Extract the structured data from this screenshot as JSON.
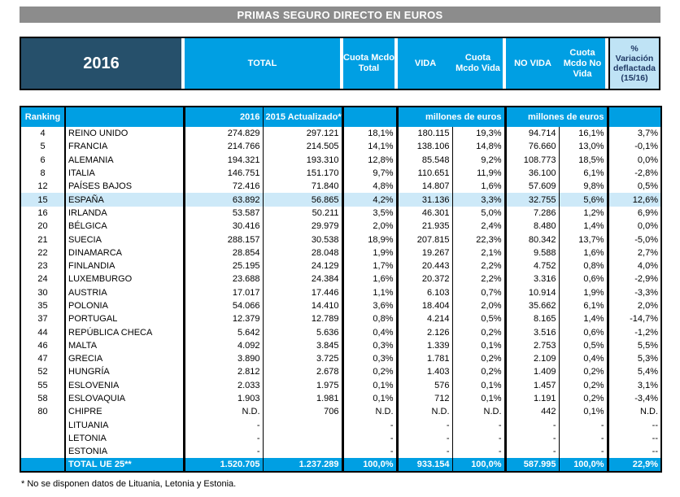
{
  "colors": {
    "gray": "#8c8c8c",
    "blue": "#009fe3",
    "dark": "#26506b",
    "light": "#bfe3f5",
    "navy": "#1f3864",
    "highlight": "#cde9f8"
  },
  "title": "PRIMAS SEGURO DIRECTO EN EUROS",
  "header_band": {
    "year": "2016",
    "total": "TOTAL",
    "cuota_total": "Cuota Mcdo Total",
    "vida": "VIDA",
    "cuota_vida": "Cuota Mcdo Vida",
    "no_vida": "NO VIDA",
    "cuota_no_vida": "Cuota Mcdo No Vida",
    "variacion": "% Variación deflactada (15/16)"
  },
  "subheader": {
    "ranking": "Ranking",
    "country": "",
    "y2016": "2016",
    "y2015": "2015 Actualizado*",
    "cuota_blank": "",
    "millones_vida": "millones de euros",
    "millones_no_vida": "millones de euros",
    "variacion_blank": ""
  },
  "chart_data": {
    "type": "table",
    "title": "PRIMAS SEGURO DIRECTO EN EUROS",
    "columns": [
      "rank",
      "country",
      "total_2016",
      "total_2015_actualizado",
      "cuota_mcdo_total",
      "vida",
      "cuota_mcdo_vida",
      "no_vida",
      "cuota_mcdo_no_vida",
      "variacion_deflactada_15_16"
    ],
    "units": "millones de euros",
    "rows": [
      {
        "cells": [
          "4",
          "REINO UNIDO",
          "274.829",
          "297.121",
          "18,1%",
          "180.115",
          "19,3%",
          "94.714",
          "16,1%",
          "3,7%"
        ],
        "highlight": false
      },
      {
        "cells": [
          "5",
          "FRANCIA",
          "214.766",
          "214.505",
          "14,1%",
          "138.106",
          "14,8%",
          "76.660",
          "13,0%",
          "-0,1%"
        ],
        "highlight": false
      },
      {
        "cells": [
          "6",
          "ALEMANIA",
          "194.321",
          "193.310",
          "12,8%",
          "85.548",
          "9,2%",
          "108.773",
          "18,5%",
          "0,0%"
        ],
        "highlight": false
      },
      {
        "cells": [
          "8",
          "ITALIA",
          "146.751",
          "151.170",
          "9,7%",
          "110.651",
          "11,9%",
          "36.100",
          "6,1%",
          "-2,8%"
        ],
        "highlight": false
      },
      {
        "cells": [
          "12",
          "PAÍSES BAJOS",
          "72.416",
          "71.840",
          "4,8%",
          "14.807",
          "1,6%",
          "57.609",
          "9,8%",
          "0,5%"
        ],
        "highlight": false
      },
      {
        "cells": [
          "15",
          "ESPAÑA",
          "63.892",
          "56.865",
          "4,2%",
          "31.136",
          "3,3%",
          "32.755",
          "5,6%",
          "12,6%"
        ],
        "highlight": true
      },
      {
        "cells": [
          "16",
          "IRLANDA",
          "53.587",
          "50.211",
          "3,5%",
          "46.301",
          "5,0%",
          "7.286",
          "1,2%",
          "6,9%"
        ],
        "highlight": false
      },
      {
        "cells": [
          "20",
          "BÉLGICA",
          "30.416",
          "29.979",
          "2,0%",
          "21.935",
          "2,4%",
          "8.480",
          "1,4%",
          "0,0%"
        ],
        "highlight": false
      },
      {
        "cells": [
          "21",
          "SUECIA",
          "288.157",
          "30.538",
          "18,9%",
          "207.815",
          "22,3%",
          "80.342",
          "13,7%",
          "-5,0%"
        ],
        "highlight": false
      },
      {
        "cells": [
          "22",
          "DINAMARCA",
          "28.854",
          "28.048",
          "1,9%",
          "19.267",
          "2,1%",
          "9.588",
          "1,6%",
          "2,7%"
        ],
        "highlight": false
      },
      {
        "cells": [
          "23",
          "FINLANDIA",
          "25.195",
          "24.129",
          "1,7%",
          "20.443",
          "2,2%",
          "4.752",
          "0,8%",
          "4,0%"
        ],
        "highlight": false
      },
      {
        "cells": [
          "24",
          "LUXEMBURGO",
          "23.688",
          "24.384",
          "1,6%",
          "20.372",
          "2,2%",
          "3.316",
          "0,6%",
          "-2,9%"
        ],
        "highlight": false
      },
      {
        "cells": [
          "30",
          "AUSTRIA",
          "17.017",
          "17.446",
          "1,1%",
          "6.103",
          "0,7%",
          "10.914",
          "1,9%",
          "-3,3%"
        ],
        "highlight": false
      },
      {
        "cells": [
          "35",
          "POLONIA",
          "54.066",
          "14.410",
          "3,6%",
          "18.404",
          "2,0%",
          "35.662",
          "6,1%",
          "2,0%"
        ],
        "highlight": false
      },
      {
        "cells": [
          "37",
          "PORTUGAL",
          "12.379",
          "12.789",
          "0,8%",
          "4.214",
          "0,5%",
          "8.165",
          "1,4%",
          "-14,7%"
        ],
        "highlight": false
      },
      {
        "cells": [
          "44",
          "REPÚBLICA CHECA",
          "5.642",
          "5.636",
          "0,4%",
          "2.126",
          "0,2%",
          "3.516",
          "0,6%",
          "-1,2%"
        ],
        "highlight": false
      },
      {
        "cells": [
          "46",
          "MALTA",
          "4.092",
          "3.845",
          "0,3%",
          "1.339",
          "0,1%",
          "2.753",
          "0,5%",
          "5,5%"
        ],
        "highlight": false
      },
      {
        "cells": [
          "47",
          "GRECIA",
          "3.890",
          "3.725",
          "0,3%",
          "1.781",
          "0,2%",
          "2.109",
          "0,4%",
          "5,3%"
        ],
        "highlight": false
      },
      {
        "cells": [
          "52",
          "HUNGRÍA",
          "2.812",
          "2.678",
          "0,2%",
          "1.403",
          "0,2%",
          "1.409",
          "0,2%",
          "5,4%"
        ],
        "highlight": false
      },
      {
        "cells": [
          "55",
          "ESLOVENIA",
          "2.033",
          "1.975",
          "0,1%",
          "576",
          "0,1%",
          "1.457",
          "0,2%",
          "3,1%"
        ],
        "highlight": false
      },
      {
        "cells": [
          "58",
          "ESLOVAQUIA",
          "1.903",
          "1.981",
          "0,1%",
          "712",
          "0,1%",
          "1.191",
          "0,2%",
          "-3,4%"
        ],
        "highlight": false
      },
      {
        "cells": [
          "80",
          "CHIPRE",
          "N.D.",
          "706",
          "N.D.",
          "N.D.",
          "N.D.",
          "442",
          "0,1%",
          "N.D."
        ],
        "highlight": false
      },
      {
        "cells": [
          "",
          "LITUANIA",
          "-",
          "",
          "-",
          "-",
          "-",
          "-",
          "-",
          "--"
        ],
        "highlight": false
      },
      {
        "cells": [
          "",
          "LETONIA",
          "-",
          "",
          "-",
          "-",
          "-",
          "-",
          "-",
          "--"
        ],
        "highlight": false
      },
      {
        "cells": [
          "",
          "ESTONIA",
          "-",
          "",
          "-",
          "-",
          "-",
          "-",
          "-",
          "--"
        ],
        "highlight": false
      }
    ],
    "total_row": {
      "cells": [
        "",
        "TOTAL UE 25**",
        "1.520.705",
        "1.237.289",
        "100,0%",
        "933.154",
        "100,0%",
        "587.995",
        "100,0%",
        "22,9%"
      ]
    }
  },
  "footnote": "* No se disponen datos de Lituania, Letonia y Estonia."
}
